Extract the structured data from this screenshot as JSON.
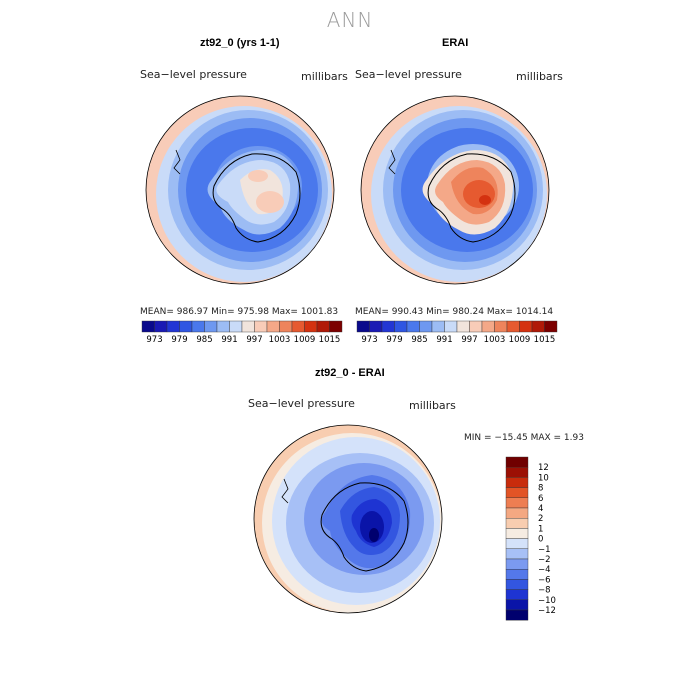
{
  "figure_title": "ANN",
  "palettes": {
    "abs": [
      "#0a0a8c",
      "#1a1ab4",
      "#2236d4",
      "#2f56e2",
      "#4a78ec",
      "#6e98f0",
      "#9cbcf4",
      "#c9dbf8",
      "#f1e4dc",
      "#f8ccb8",
      "#f4a888",
      "#ee845c",
      "#e65a30",
      "#d43210",
      "#b01a08",
      "#7c0000"
    ],
    "diff": [
      "#00006e",
      "#0a14a8",
      "#1e34d2",
      "#3356e0",
      "#5478ea",
      "#7b9af0",
      "#a7c0f6",
      "#d4e2fa",
      "#f6ece2",
      "#f8cdb0",
      "#f4a882",
      "#ee7e52",
      "#e25426",
      "#c82c0c",
      "#9c1004",
      "#700000"
    ]
  },
  "panel_left": {
    "title": "zt92_0 (yrs 1-1)",
    "left_label": "Sea−level pressure",
    "right_label": "millibars",
    "stats": "MEAN= 986.97   Min= 975.98   Max= 1001.83"
  },
  "panel_right": {
    "title": "ERAI",
    "left_label": "Sea−level pressure",
    "right_label": "millibars",
    "stats": "MEAN= 990.43   Min= 980.24   Max= 1014.14"
  },
  "colorbar_ticks": [
    "973",
    "979",
    "985",
    "991",
    "997",
    "1003",
    "1009",
    "1015"
  ],
  "panel_diff": {
    "title": "zt92_0 - ERAI",
    "left_label": "Sea−level pressure",
    "right_label": "millibars",
    "minmax": "MIN = −15.45 MAX =    1.93",
    "colorbar_labels": [
      "12",
      "10",
      "8",
      "6",
      "4",
      "2",
      "1",
      "0",
      "−1",
      "−2",
      "−4",
      "−6",
      "−8",
      "−10",
      "−12"
    ]
  }
}
